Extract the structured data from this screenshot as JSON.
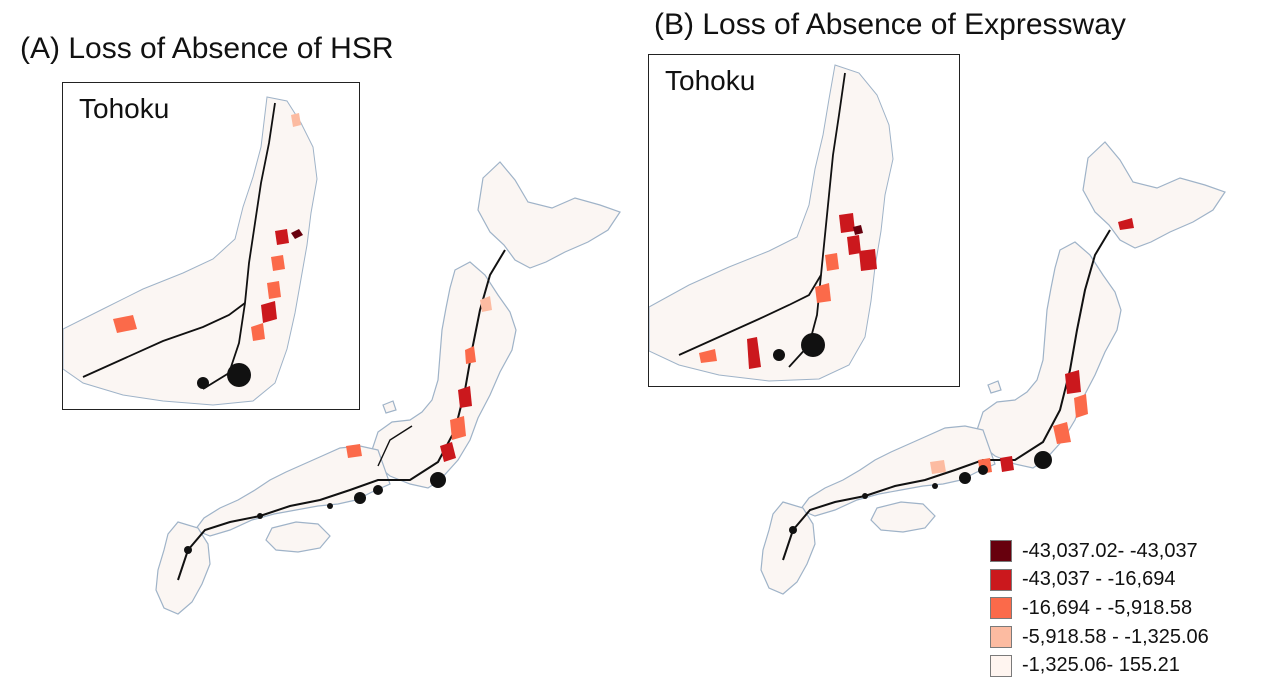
{
  "panels": [
    {
      "id": "A",
      "title": "(A) Loss of Absence of HSR",
      "inset_label": "Tohoku"
    },
    {
      "id": "B",
      "title": "(B) Loss of Absence of Expressway",
      "inset_label": "Tohoku"
    }
  ],
  "legend": {
    "items": [
      {
        "label": "-43,037.02- -43,037",
        "color": "#67000d"
      },
      {
        "label": "-43,037 - -16,694",
        "color": "#cb181d"
      },
      {
        "label": "-16,694 - -5,918.58",
        "color": "#fb6a4a"
      },
      {
        "label": "-5,918.58 - -1,325.06",
        "color": "#fcbba1"
      },
      {
        "label": "-1,325.06- 155.21",
        "color": "#fff5f0"
      }
    ]
  },
  "colors": {
    "boundary": "#9fb3c8",
    "rail": "#111111",
    "frame": "#222222"
  }
}
